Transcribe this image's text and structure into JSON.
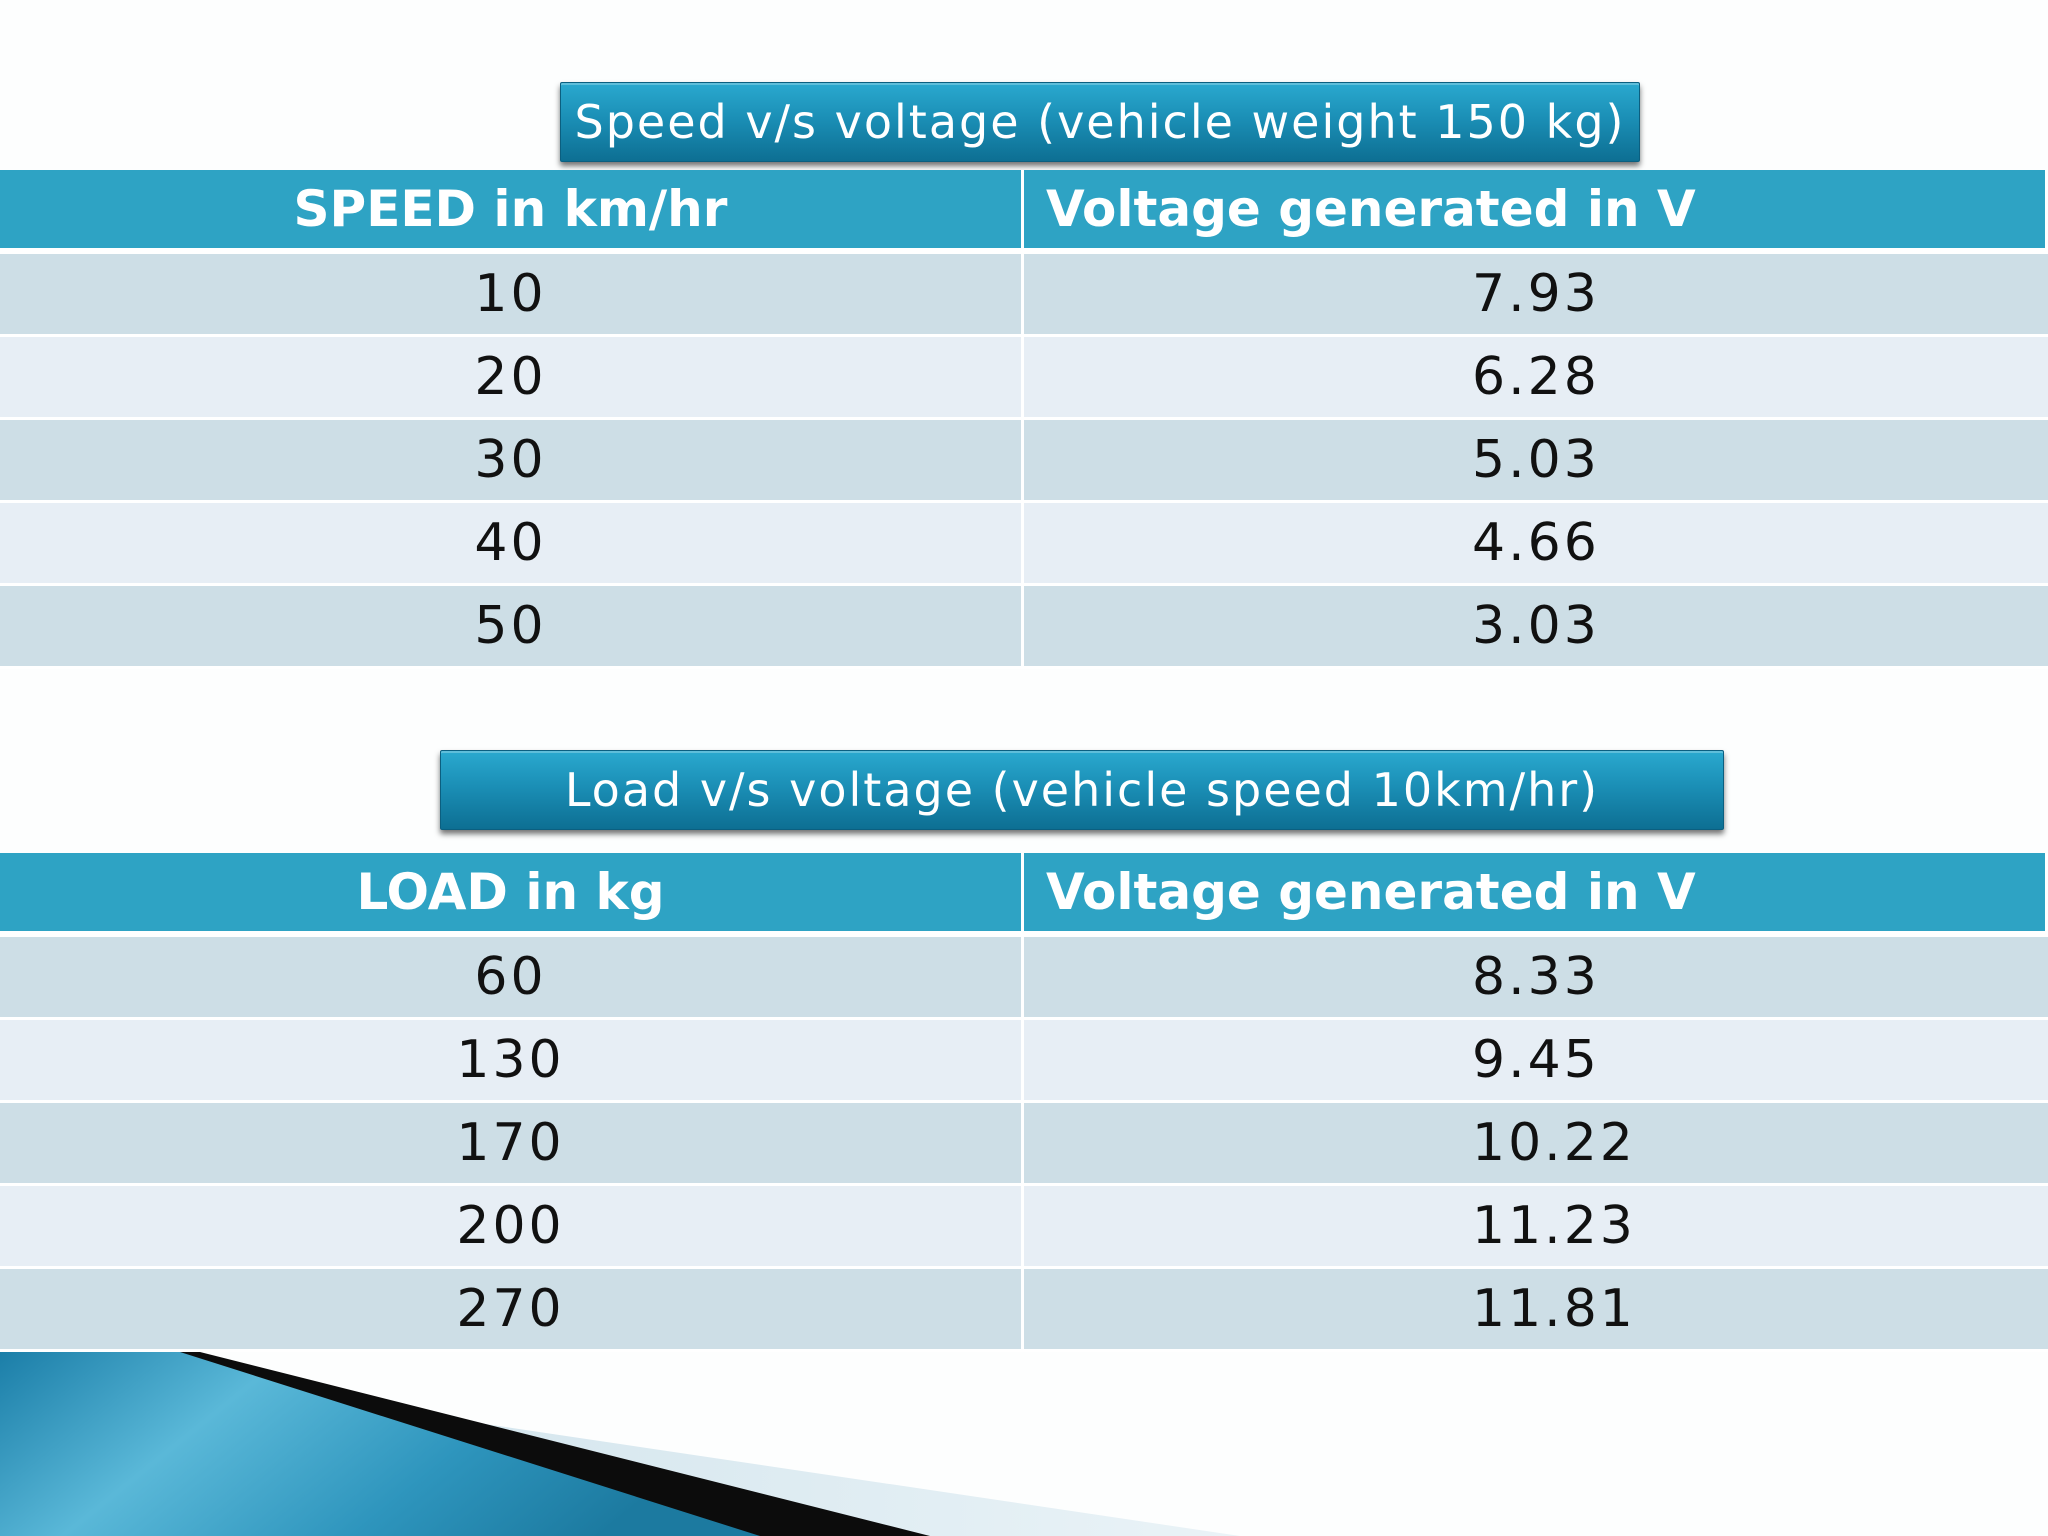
{
  "tables": [
    {
      "banner": "Speed v/s voltage (vehicle weight 150 kg)",
      "headers": [
        "SPEED in km/hr",
        "Voltage generated in V"
      ],
      "rows": [
        [
          "10",
          "7.93"
        ],
        [
          "20",
          "6.28"
        ],
        [
          "30",
          "5.03"
        ],
        [
          "40",
          "4.66"
        ],
        [
          "50",
          "3.03"
        ]
      ]
    },
    {
      "banner": "Load v/s voltage (vehicle speed 10km/hr)",
      "headers": [
        "LOAD in kg",
        "Voltage generated in V"
      ],
      "rows": [
        [
          "60",
          "8.33"
        ],
        [
          "130",
          "9.45"
        ],
        [
          "170",
          "10.22"
        ],
        [
          "200",
          "11.23"
        ],
        [
          "270",
          "11.81"
        ]
      ]
    }
  ],
  "colors": {
    "banner": "#1b8fb6",
    "header": "#2ea3c4",
    "row_dark": "#cddee6",
    "row_light": "#e7eef5",
    "background": "#fdfefe"
  }
}
